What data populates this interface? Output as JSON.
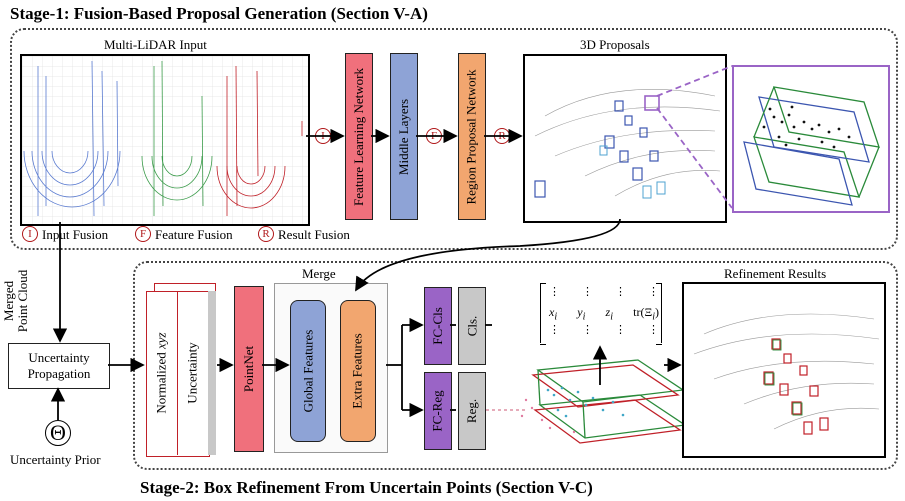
{
  "stage1": {
    "title": "Stage-1: Fusion-Based Proposal Generation (Section V-A)",
    "input_label": "Multi-LiDAR Input",
    "proposals_label": "3D Proposals",
    "modules": {
      "feature_learning": "Feature Learning Network",
      "middle_layers": "Middle Layers",
      "rpn": "Region Proposal Network"
    },
    "legend": [
      {
        "symbol": "I",
        "label": "Input Fusion"
      },
      {
        "symbol": "F",
        "label": "Feature Fusion"
      },
      {
        "symbol": "R",
        "label": "Result Fusion"
      }
    ]
  },
  "stage2": {
    "title": "Stage-2: Box Refinement From Uncertain Points (Section V-C)",
    "merged_line1": "Merged",
    "merged_line2": "Point Cloud",
    "uncertainty_line1": "Uncertainty",
    "uncertainty_line2": "Propagation",
    "uncertainty_prior": "Uncertainty Prior",
    "prior_symbol": "Θ",
    "input_normalized": "Normalized",
    "input_xyz": "xyz",
    "input_uncertainty": "Uncertainty",
    "pointnet": "PointNet",
    "merge_label": "Merge",
    "global_features": "Global Features",
    "extra_features": "Extra Features",
    "fc_cls": "FC-Cls",
    "fc_reg": "FC-Reg",
    "cls": "Cls.",
    "reg": "Reg.",
    "refinement_label": "Refinement Results",
    "matrix_row": [
      "x",
      "y",
      "z",
      "tr(Ξ"
    ]
  },
  "colors": {
    "red": "#b0181a",
    "pink": "#f0707c",
    "blue": "#8ea3d6",
    "orange": "#f2a66f",
    "purple": "#9a64c6",
    "gray": "#c8c8c8",
    "green": "#2a8a3a"
  }
}
